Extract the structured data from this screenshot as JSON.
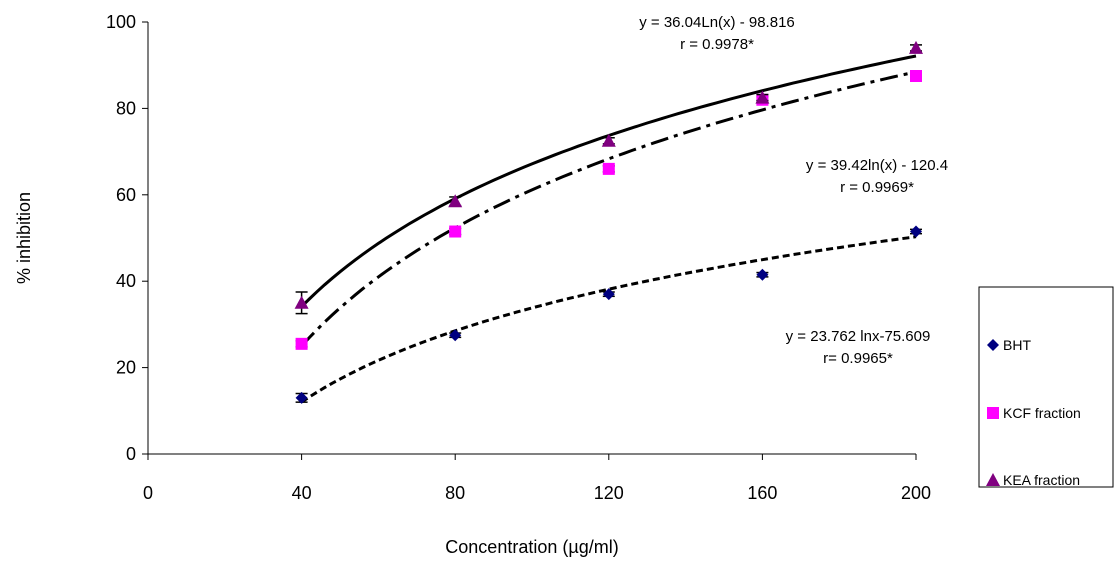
{
  "chart_data": {
    "type": "scatter",
    "title": "",
    "xlabel": "Concentration (µg/ml)",
    "ylabel": "% inhibition",
    "xlim": [
      0,
      200
    ],
    "ylim": [
      0,
      100
    ],
    "x_ticks": [
      "0",
      "40",
      "80",
      "120",
      "160",
      "200"
    ],
    "y_ticks": [
      "0",
      "20",
      "40",
      "60",
      "80",
      "100"
    ],
    "grid": false,
    "legend_position": "right",
    "x_categories": [
      40,
      80,
      120,
      160,
      200
    ],
    "series": [
      {
        "name": "BHT",
        "marker": "diamond",
        "color": "#000080",
        "values": [
          13,
          27.5,
          37,
          41.5,
          51.5
        ],
        "error": [
          1.0,
          0.5,
          0.5,
          0.5,
          0.5
        ],
        "trend": {
          "a": 23.762,
          "b": -75.609,
          "style": "short-dash"
        },
        "equation": "y = 23.762 lnx-75.609",
        "r": "r= 0.9965*"
      },
      {
        "name": "KCF fraction",
        "marker": "square",
        "color": "#ff00ff",
        "values": [
          25.5,
          51.5,
          66,
          82,
          87.5
        ],
        "error": [
          0.7,
          0.7,
          0.7,
          0.7,
          0.7
        ],
        "trend": {
          "a": 39.42,
          "b": -120.4,
          "style": "dash-dot"
        },
        "equation": "y = 39.42ln(x) - 120.4",
        "r": "r = 0.9969*"
      },
      {
        "name": "KEA fraction",
        "marker": "triangle",
        "color": "#800080",
        "values": [
          35,
          58.5,
          72.5,
          82.5,
          94
        ],
        "error": [
          2.5,
          1.0,
          0.7,
          0.7,
          0.7
        ],
        "trend": {
          "a": 36.04,
          "b": -98.816,
          "style": "solid"
        },
        "equation": "y = 36.04Ln(x) - 98.816",
        "r": "r = 0.9978*"
      }
    ]
  }
}
